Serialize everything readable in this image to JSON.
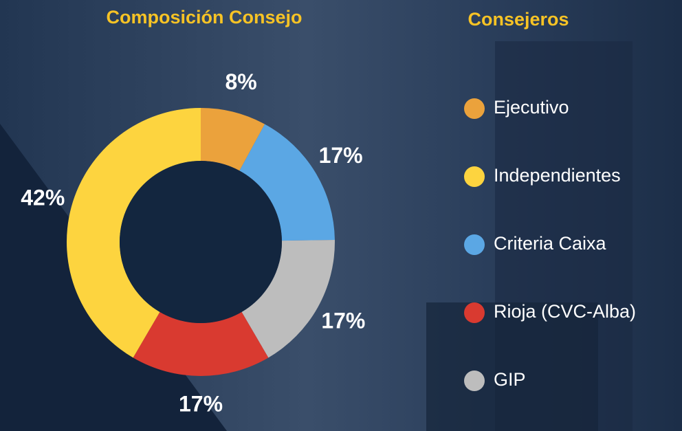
{
  "chart_data": {
    "type": "donut",
    "title": "Composición Consejo",
    "legend_title": "Consejeros",
    "categories": [
      "Ejecutivo",
      "Criteria Caixa",
      "GIP",
      "Rioja (CVC-Alba)",
      "Independientes"
    ],
    "values": [
      8,
      17,
      17,
      17,
      42
    ],
    "value_labels": [
      "8%",
      "17%",
      "17%",
      "17%",
      "42%"
    ],
    "colors": [
      "#eba23c",
      "#5ba7e4",
      "#bdbdbd",
      "#d93a30",
      "#fdd43f"
    ],
    "legend": "right"
  }
}
